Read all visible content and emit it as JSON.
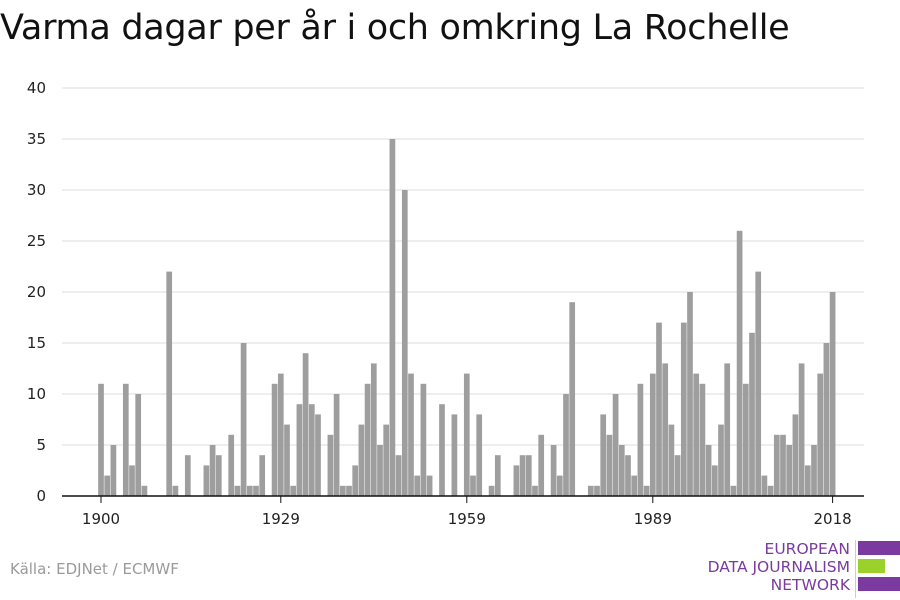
{
  "title": "Varma dagar per år i och omkring La Rochelle",
  "source": "Källa: EDJNet / ECMWF",
  "logo": {
    "lines": [
      "EUROPEAN",
      "DATA JOURNALISM",
      "NETWORK"
    ],
    "colors": [
      "#7a3aa0",
      "#9ad12a",
      "#7a3aa0"
    ]
  },
  "chart_data": {
    "type": "bar",
    "bar_color": "#9e9e9e",
    "grid": true,
    "ylim": [
      0,
      40
    ],
    "yticks": [
      0,
      5,
      10,
      15,
      20,
      25,
      30,
      35,
      40
    ],
    "xticks": [
      1900,
      1929,
      1959,
      1989,
      2018
    ],
    "x": [
      1900,
      1901,
      1902,
      1903,
      1904,
      1905,
      1906,
      1907,
      1908,
      1909,
      1910,
      1911,
      1912,
      1913,
      1914,
      1915,
      1916,
      1917,
      1918,
      1919,
      1920,
      1921,
      1922,
      1923,
      1924,
      1925,
      1926,
      1927,
      1928,
      1929,
      1930,
      1931,
      1932,
      1933,
      1934,
      1935,
      1936,
      1937,
      1938,
      1939,
      1940,
      1941,
      1942,
      1943,
      1944,
      1945,
      1946,
      1947,
      1948,
      1949,
      1950,
      1951,
      1952,
      1953,
      1954,
      1955,
      1956,
      1957,
      1958,
      1959,
      1960,
      1961,
      1962,
      1963,
      1964,
      1965,
      1966,
      1967,
      1968,
      1969,
      1970,
      1971,
      1972,
      1973,
      1974,
      1975,
      1976,
      1977,
      1978,
      1979,
      1980,
      1981,
      1982,
      1983,
      1984,
      1985,
      1986,
      1987,
      1988,
      1989,
      1990,
      1991,
      1992,
      1993,
      1994,
      1995,
      1996,
      1997,
      1998,
      1999,
      2000,
      2001,
      2002,
      2003,
      2004,
      2005,
      2006,
      2007,
      2008,
      2009,
      2010,
      2011,
      2012,
      2013,
      2014,
      2015,
      2016,
      2017,
      2018
    ],
    "values": [
      11,
      2,
      5,
      0,
      11,
      3,
      10,
      1,
      0,
      0,
      0,
      22,
      1,
      0,
      4,
      0,
      0,
      3,
      5,
      4,
      0,
      6,
      1,
      15,
      1,
      1,
      4,
      0,
      11,
      12,
      7,
      1,
      9,
      14,
      9,
      8,
      0,
      6,
      10,
      1,
      1,
      3,
      7,
      11,
      13,
      5,
      7,
      35,
      4,
      30,
      12,
      2,
      11,
      2,
      0,
      9,
      0,
      8,
      0,
      12,
      2,
      8,
      0,
      1,
      4,
      0,
      0,
      3,
      4,
      4,
      1,
      6,
      0,
      5,
      2,
      10,
      19,
      0,
      0,
      1,
      1,
      8,
      6,
      10,
      5,
      4,
      2,
      11,
      1,
      12,
      17,
      13,
      7,
      4,
      17,
      20,
      12,
      11,
      5,
      3,
      7,
      13,
      1,
      26,
      11,
      16,
      22,
      2,
      1,
      6,
      6,
      5,
      8,
      13,
      3,
      5,
      12,
      15,
      20
    ]
  }
}
